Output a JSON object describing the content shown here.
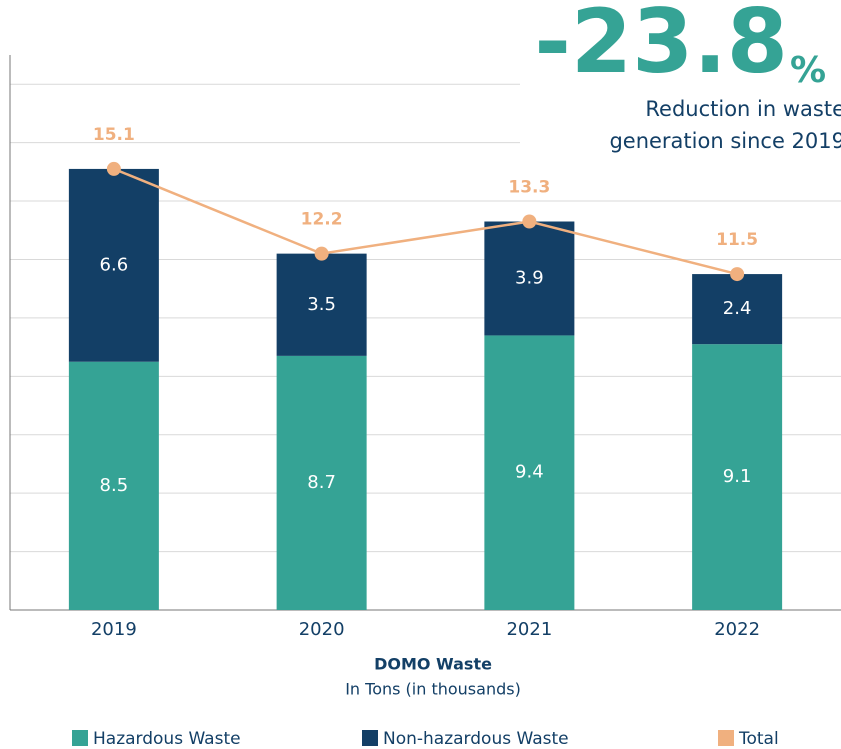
{
  "chart_data": {
    "type": "bar",
    "categories": [
      "2019",
      "2020",
      "2021",
      "2022"
    ],
    "series": [
      {
        "name": "Hazardous Waste",
        "color": "#35a395",
        "values": [
          8.5,
          8.7,
          9.4,
          9.1
        ]
      },
      {
        "name": "Non-hazardous Waste",
        "color": "#133f66",
        "values": [
          6.6,
          3.5,
          3.9,
          2.4
        ]
      },
      {
        "name": "Total",
        "color": "#f0b07f",
        "type": "line",
        "values": [
          15.1,
          12.2,
          13.3,
          11.5
        ]
      }
    ],
    "ylim": [
      0,
      19
    ],
    "yticks": [
      0,
      2,
      4,
      6,
      8,
      10,
      12,
      14,
      16,
      18
    ],
    "grid": true,
    "xlabel": "DOMO Waste",
    "xlabel_sub": "In Tons (in thousands)",
    "annotation": {
      "headline": "-23.8",
      "headline_unit": "%",
      "lines": [
        "Reduction in waste",
        "generation since 2019"
      ]
    },
    "legend": "bottom"
  }
}
